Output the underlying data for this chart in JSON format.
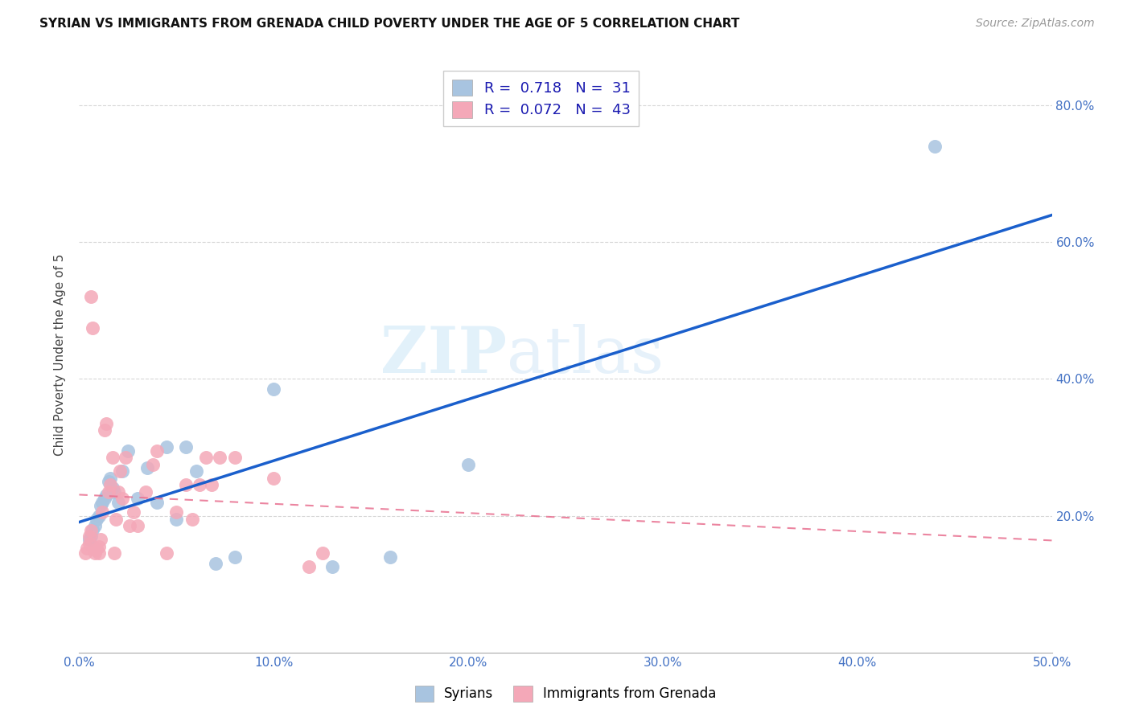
{
  "title": "SYRIAN VS IMMIGRANTS FROM GRENADA CHILD POVERTY UNDER THE AGE OF 5 CORRELATION CHART",
  "source": "Source: ZipAtlas.com",
  "ylabel": "Child Poverty Under the Age of 5",
  "xlim": [
    0.0,
    0.5
  ],
  "ylim": [
    0.0,
    0.87
  ],
  "xticks": [
    0.0,
    0.1,
    0.2,
    0.3,
    0.4,
    0.5
  ],
  "yticks": [
    0.2,
    0.4,
    0.6,
    0.8
  ],
  "xticklabels": [
    "0.0%",
    "10.0%",
    "20.0%",
    "30.0%",
    "40.0%",
    "50.0%"
  ],
  "yticklabels": [
    "20.0%",
    "40.0%",
    "60.0%",
    "80.0%"
  ],
  "syrian_R": 0.718,
  "syrian_N": 31,
  "grenada_R": 0.072,
  "grenada_N": 43,
  "syrian_color": "#a8c4e0",
  "grenada_color": "#f4a8b8",
  "syrian_line_color": "#1a5fcc",
  "grenada_line_color": "#e87090",
  "tick_color": "#4472c4",
  "watermark_zip": "ZIP",
  "watermark_atlas": "atlas",
  "syrian_x": [
    0.005,
    0.006,
    0.007,
    0.008,
    0.009,
    0.01,
    0.011,
    0.012,
    0.013,
    0.014,
    0.015,
    0.016,
    0.017,
    0.018,
    0.02,
    0.022,
    0.025,
    0.03,
    0.035,
    0.04,
    0.045,
    0.05,
    0.055,
    0.06,
    0.07,
    0.08,
    0.1,
    0.13,
    0.16,
    0.2,
    0.44
  ],
  "syrian_y": [
    0.165,
    0.17,
    0.18,
    0.185,
    0.195,
    0.2,
    0.215,
    0.22,
    0.225,
    0.23,
    0.25,
    0.255,
    0.24,
    0.235,
    0.22,
    0.265,
    0.295,
    0.225,
    0.27,
    0.22,
    0.3,
    0.195,
    0.3,
    0.265,
    0.13,
    0.14,
    0.385,
    0.125,
    0.14,
    0.275,
    0.74
  ],
  "grenada_x": [
    0.003,
    0.004,
    0.005,
    0.005,
    0.006,
    0.006,
    0.007,
    0.008,
    0.009,
    0.01,
    0.01,
    0.011,
    0.012,
    0.013,
    0.014,
    0.015,
    0.016,
    0.017,
    0.018,
    0.019,
    0.02,
    0.021,
    0.022,
    0.024,
    0.026,
    0.028,
    0.03,
    0.034,
    0.038,
    0.04,
    0.045,
    0.05,
    0.055,
    0.058,
    0.062,
    0.065,
    0.068,
    0.072,
    0.08,
    0.1,
    0.118,
    0.125,
    0.008
  ],
  "grenada_y": [
    0.145,
    0.152,
    0.16,
    0.17,
    0.178,
    0.52,
    0.475,
    0.145,
    0.152,
    0.145,
    0.155,
    0.165,
    0.205,
    0.325,
    0.335,
    0.235,
    0.245,
    0.285,
    0.145,
    0.195,
    0.235,
    0.265,
    0.225,
    0.285,
    0.185,
    0.205,
    0.185,
    0.235,
    0.275,
    0.295,
    0.145,
    0.205,
    0.245,
    0.195,
    0.245,
    0.285,
    0.245,
    0.285,
    0.285,
    0.255,
    0.125,
    0.145,
    0.15
  ]
}
